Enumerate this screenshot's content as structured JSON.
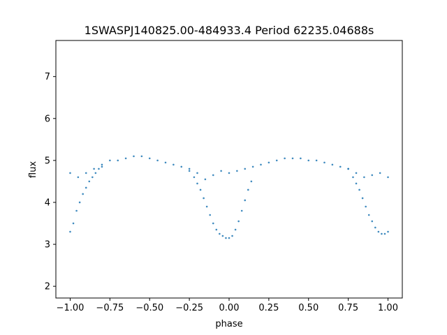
{
  "chart_data": {
    "type": "scatter",
    "title": "1SWASPJ140825.00-484933.4 Period 62235.04688s",
    "xlabel": "phase",
    "ylabel": "flux",
    "xlim": [
      -1.09,
      1.09
    ],
    "ylim": [
      1.72,
      7.86
    ],
    "grid": false,
    "x_ticks": [
      -1.0,
      -0.75,
      -0.5,
      -0.25,
      0.0,
      0.25,
      0.5,
      0.75,
      1.0
    ],
    "x_tick_labels": [
      "−1.00",
      "−0.75",
      "−0.50",
      "−0.25",
      "0.00",
      "0.25",
      "0.50",
      "0.75",
      "1.00"
    ],
    "y_ticks": [
      2,
      3,
      4,
      5,
      6,
      7
    ],
    "y_tick_labels": [
      "2",
      "3",
      "4",
      "5",
      "6",
      "7"
    ],
    "marker_color": "#1f77b4",
    "series": [
      {
        "x": [
          -1.0,
          -0.95,
          -0.9,
          -0.85,
          -0.8,
          -0.75,
          -0.7,
          -0.65,
          -0.6,
          -0.55,
          -0.5,
          -0.45,
          -0.4,
          -0.35,
          -0.3,
          -0.25,
          -0.2,
          -0.15,
          -0.1,
          -0.05,
          0.0,
          0.05,
          0.1,
          0.15,
          0.2,
          0.25,
          0.3,
          0.35,
          0.4,
          0.45,
          0.5,
          0.55,
          0.6,
          0.65,
          0.7,
          0.75,
          0.8,
          0.85,
          0.9,
          0.95,
          1.0
        ],
        "y": [
          4.7,
          4.6,
          4.7,
          4.8,
          4.9,
          5.0,
          5.0,
          5.05,
          5.1,
          5.1,
          5.05,
          5.0,
          4.95,
          4.9,
          4.85,
          4.8,
          4.7,
          4.55,
          4.65,
          4.75,
          4.7,
          4.75,
          4.8,
          4.85,
          4.9,
          4.95,
          5.0,
          5.05,
          5.05,
          5.05,
          5.0,
          5.0,
          4.95,
          4.9,
          4.85,
          4.8,
          4.7,
          4.6,
          4.65,
          4.7,
          4.6
        ]
      },
      {
        "x": [
          -1.0,
          -0.98,
          -0.96,
          -0.94,
          -0.92,
          -0.9,
          -0.88,
          -0.86,
          -0.84,
          -0.82,
          -0.8,
          -0.25,
          -0.22,
          -0.2,
          -0.18,
          -0.16,
          -0.14,
          -0.12,
          -0.1,
          -0.08,
          -0.06,
          -0.04,
          -0.02,
          0.0,
          0.02,
          0.04,
          0.06,
          0.08,
          0.1,
          0.12,
          0.14,
          0.75,
          0.78,
          0.8,
          0.82,
          0.84,
          0.86,
          0.88,
          0.9,
          0.92,
          0.94,
          0.96,
          0.98,
          1.0
        ],
        "y": [
          3.3,
          3.5,
          3.8,
          4.0,
          4.2,
          4.35,
          4.5,
          4.6,
          4.7,
          4.8,
          4.85,
          4.75,
          4.6,
          4.45,
          4.3,
          4.1,
          3.9,
          3.7,
          3.5,
          3.35,
          3.25,
          3.2,
          3.15,
          3.15,
          3.2,
          3.35,
          3.55,
          3.8,
          4.05,
          4.3,
          4.5,
          4.8,
          4.6,
          4.45,
          4.3,
          4.1,
          3.9,
          3.7,
          3.55,
          3.4,
          3.3,
          3.25,
          3.25,
          3.3
        ]
      }
    ]
  }
}
